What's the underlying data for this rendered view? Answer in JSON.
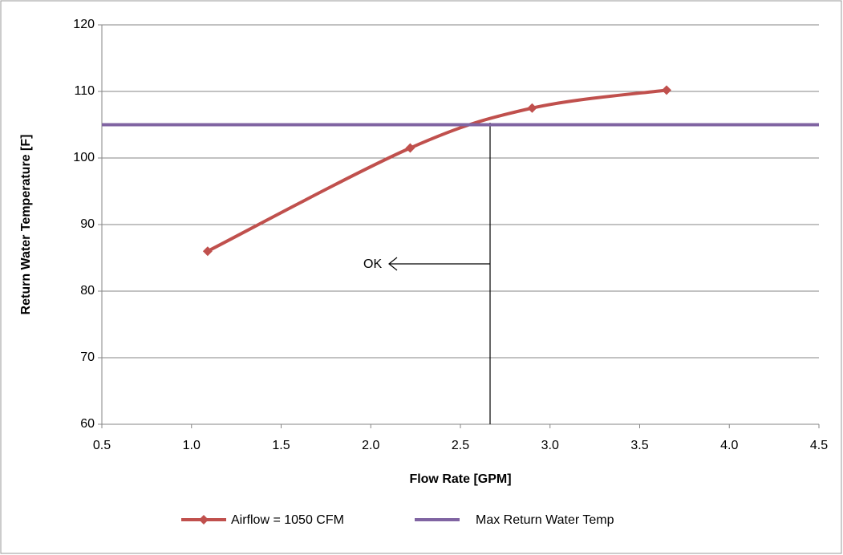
{
  "chart_data": {
    "type": "line",
    "x_label": "Flow Rate [GPM]",
    "y_label": "Return Water Temperature [F]",
    "annotation": "OK",
    "xlim": [
      0.5,
      4.5
    ],
    "xticks": [
      {
        "value": 0.5,
        "label": "0.5"
      },
      {
        "value": 1.0,
        "label": "1.0"
      },
      {
        "value": 1.5,
        "label": "1.5"
      },
      {
        "value": 2.0,
        "label": "2.0"
      },
      {
        "value": 2.5,
        "label": "2.5"
      },
      {
        "value": 3.0,
        "label": "3.0"
      },
      {
        "value": 3.5,
        "label": "3.5"
      },
      {
        "value": 4.0,
        "label": "4.0"
      },
      {
        "value": 4.5,
        "label": "4.5"
      }
    ],
    "ylim": [
      60,
      120
    ],
    "yticks": [
      60,
      70,
      80,
      90,
      100,
      110,
      120
    ],
    "grid": true,
    "legend": "bottom",
    "series": [
      {
        "name": "Airflow = 1050 CFM",
        "color": "#c0504d",
        "marker": "diamond",
        "smooth": true,
        "x": [
          1.09,
          2.22,
          2.9,
          3.65
        ],
        "values": [
          86,
          101.5,
          107.5,
          110.2
        ]
      },
      {
        "name": "Max Return Water Temp",
        "color": "#8064a2",
        "x": [
          0.5,
          4.5
        ],
        "values": [
          105,
          105
        ]
      }
    ]
  }
}
